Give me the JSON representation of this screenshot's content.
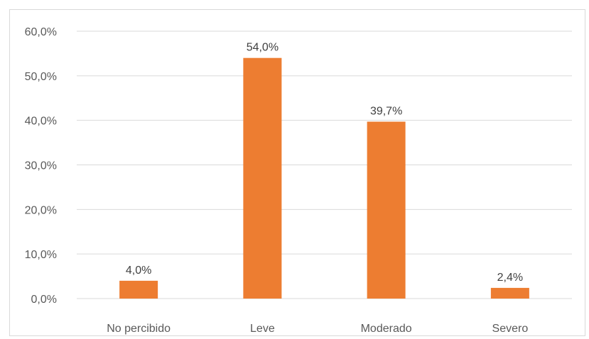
{
  "chart_data": {
    "type": "bar",
    "title": "",
    "xlabel": "",
    "ylabel": "",
    "categories": [
      "No percibido",
      "Leve",
      "Moderado",
      "Severo"
    ],
    "values": [
      4.0,
      54.0,
      39.7,
      2.4
    ],
    "data_labels": [
      "4,0%",
      "54,0%",
      "39,7%",
      "2,4%"
    ],
    "ylim": [
      0,
      60
    ],
    "yticks": [
      0,
      10,
      20,
      30,
      40,
      50,
      60
    ],
    "ytick_labels": [
      "0,0%",
      "10,0%",
      "20,0%",
      "30,0%",
      "40,0%",
      "50,0%",
      "60,0%"
    ],
    "grid": true,
    "legend": "none",
    "bar_color": "#ED7D31",
    "grid_color": "#D9D9D9"
  }
}
